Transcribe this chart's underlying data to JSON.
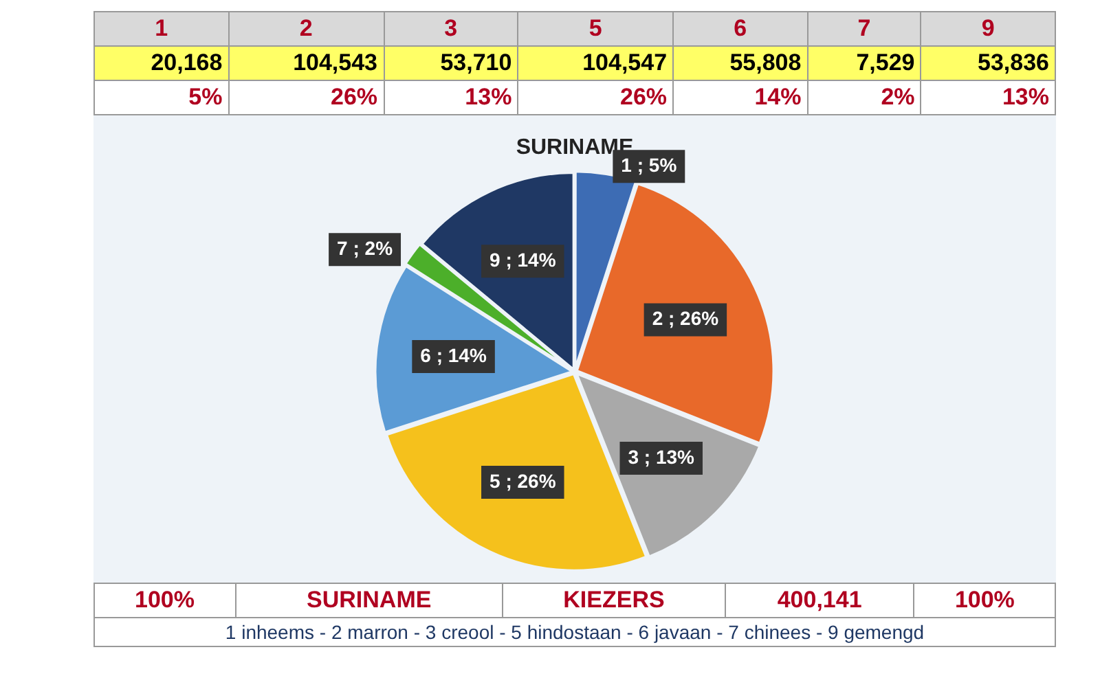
{
  "chart_data": [
    {
      "type": "other",
      "annotations": [
        "1",
        "2",
        "3",
        "5",
        "6",
        "7",
        "9",
        "20,168",
        "104,543",
        "53,710",
        "104,547",
        "55,808",
        "7,529",
        "53,836",
        "5%",
        "26%",
        "13%",
        "26%",
        "14%",
        "2%",
        "13%"
      ]
    },
    {
      "type": "pie",
      "title": "SURINAME",
      "categories": [
        "1 ; 5%",
        "2 ; 26%",
        "3 ; 13%",
        "5 ; 26%",
        "6 ; 14%",
        "7 ; 2%",
        "9 ; 14%"
      ],
      "values": [
        5,
        26,
        13,
        26,
        14,
        2,
        14
      ],
      "colors": [
        "#3d6cb4",
        "#e8692a",
        "#a9a9a9",
        "#f5c11c",
        "#5b9bd5",
        "#4caf2a",
        "#1f3864"
      ],
      "legend": false
    },
    {
      "type": "other",
      "annotations": [
        "100%",
        "SURINAME",
        "KIEZERS",
        "400,141",
        "100%",
        "1 inheems - 2 marron - 3 creool - 5 hindostaan - 6 javaan - 7 chinees - 9 gemengd"
      ]
    }
  ]
}
